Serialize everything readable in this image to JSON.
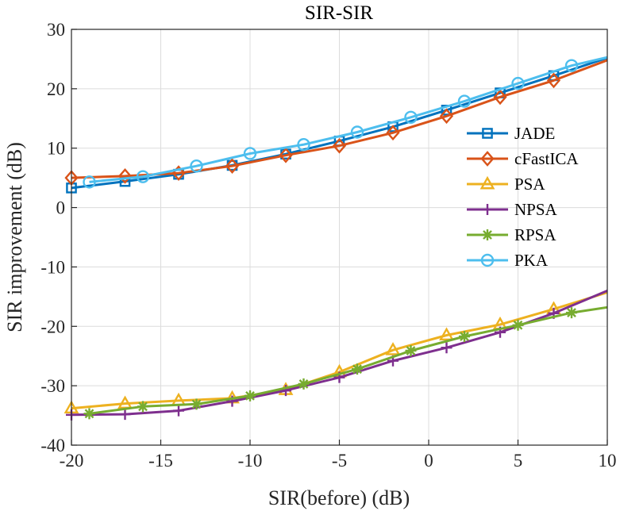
{
  "chart_data": {
    "type": "line",
    "title": "SIR-SIR",
    "xlabel": "SIR(before) (dB)",
    "ylabel": "SIR improvement (dB)",
    "xlim": [
      -20,
      10
    ],
    "ylim": [
      -40,
      30
    ],
    "xticks": [
      -20,
      -15,
      -10,
      -5,
      0,
      5,
      10
    ],
    "yticks": [
      -40,
      -30,
      -20,
      -10,
      0,
      10,
      20,
      30
    ],
    "grid": true,
    "legend_position": "right",
    "series": [
      {
        "name": "JADE",
        "color": "#0072BD",
        "marker": "square",
        "x": [
          -20,
          -17,
          -14,
          -11,
          -8,
          -5,
          -2,
          1,
          4,
          7,
          10
        ],
        "y": [
          3.3,
          4.4,
          5.6,
          7.1,
          9.0,
          11.2,
          13.6,
          16.4,
          19.3,
          22.2,
          25.2
        ]
      },
      {
        "name": "cFastICA",
        "color": "#D95319",
        "marker": "diamond",
        "x": [
          -20,
          -17,
          -14,
          -11,
          -8,
          -5,
          -2,
          1,
          4,
          7,
          10
        ],
        "y": [
          5.0,
          5.3,
          5.8,
          7.0,
          8.8,
          10.4,
          12.6,
          15.4,
          18.6,
          21.4,
          24.8
        ]
      },
      {
        "name": "PSA",
        "color": "#EDB120",
        "marker": "triangle",
        "x": [
          -20,
          -17,
          -14,
          -11,
          -8,
          -5,
          -2,
          1,
          4,
          7,
          10
        ],
        "y": [
          -33.8,
          -33.0,
          -32.5,
          -32.1,
          -30.7,
          -27.7,
          -24.0,
          -21.5,
          -19.7,
          -17.1,
          -14.3
        ]
      },
      {
        "name": "NPSA",
        "color": "#7E2F8E",
        "marker": "plus",
        "x": [
          -20,
          -17,
          -14,
          -11,
          -8,
          -5,
          -2,
          1,
          4,
          7,
          10
        ],
        "y": [
          -34.9,
          -34.8,
          -34.2,
          -32.6,
          -30.8,
          -28.6,
          -25.8,
          -23.6,
          -21.0,
          -17.8,
          -14.0
        ]
      },
      {
        "name": "RPSA",
        "color": "#77AC30",
        "marker": "asterisk",
        "x": [
          -19,
          -16,
          -13,
          -10,
          -7,
          -4,
          -1,
          2,
          5,
          8,
          10
        ],
        "y": [
          -34.7,
          -33.5,
          -33.1,
          -31.7,
          -29.7,
          -27.2,
          -24.1,
          -21.7,
          -19.8,
          -17.7,
          -16.8
        ]
      },
      {
        "name": "PKA",
        "color": "#4DBEEE",
        "marker": "circle",
        "x": [
          -19,
          -16,
          -13,
          -10,
          -7,
          -4,
          -1,
          2,
          5,
          8,
          10
        ],
        "y": [
          4.3,
          5.2,
          7.0,
          9.1,
          10.6,
          12.7,
          15.2,
          17.9,
          20.9,
          23.9,
          25.3
        ]
      }
    ]
  }
}
